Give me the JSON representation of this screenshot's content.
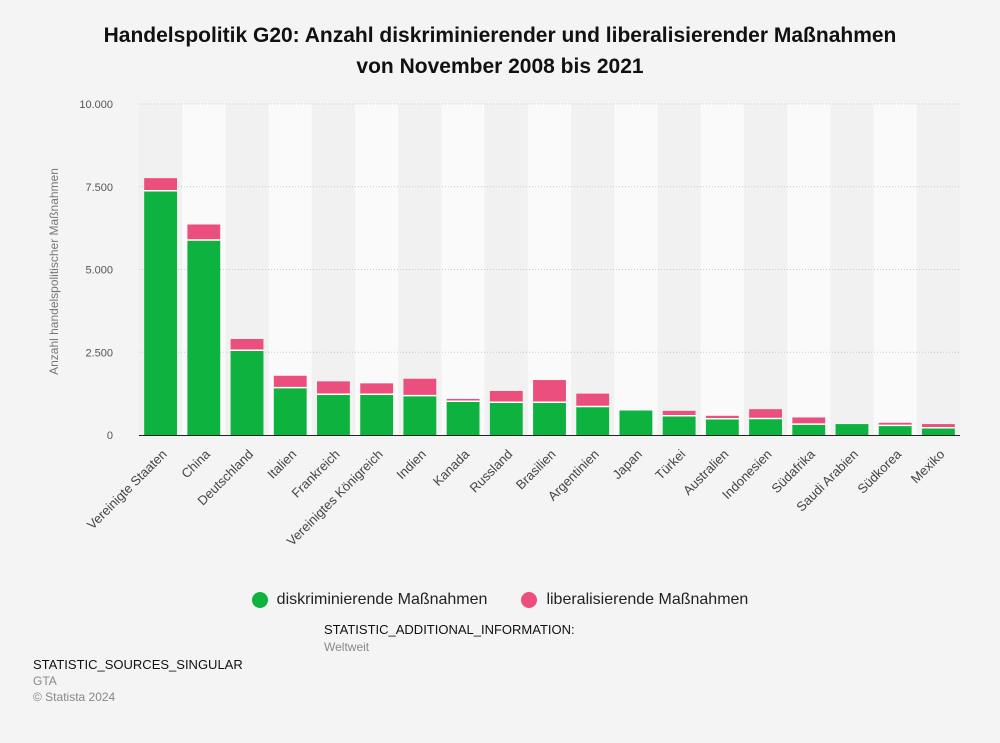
{
  "title_line1": "Handelspolitik G20: Anzahl diskriminierender und liberalisierender Maßnahmen",
  "title_line2": "von November 2008 bis 2021",
  "additional_info": {
    "label": "STATISTIC_ADDITIONAL_INFORMATION:",
    "value": "Weltweit"
  },
  "sources": {
    "label": "STATISTIC_SOURCES_SINGULAR",
    "source": "GTA",
    "copyright": "© Statista 2024"
  },
  "colors": {
    "diskriminierend": "#0db33e",
    "liberalisierend": "#ea4f7e"
  },
  "chart_data": {
    "type": "bar",
    "stacked": true,
    "title": "Handelspolitik G20: Anzahl diskriminierender und liberalisierender Maßnahmen von November 2008 bis 2021",
    "ylabel": "Anzahl handelspolitischer Maßnahmen",
    "xlabel": "",
    "ylim": [
      0,
      10000
    ],
    "yticks": [
      0,
      2500,
      5000,
      7500,
      10000
    ],
    "ytick_labels": [
      "0",
      "2.500",
      "5.000",
      "7.500",
      "10.000"
    ],
    "grid": true,
    "legend_position": "bottom",
    "categories": [
      "Vereinigte Staaten",
      "China",
      "Deutschland",
      "Italien",
      "Frankreich",
      "Vereinigtes Königreich",
      "Indien",
      "Kanada",
      "Russland",
      "Brasilien",
      "Argentinien",
      "Japan",
      "Türkei",
      "Australien",
      "Indonesien",
      "Südafrika",
      "Saudi Arabien",
      "Südkorea",
      "Mexiko"
    ],
    "series": [
      {
        "name": "diskriminierende Maßnahmen",
        "values": [
          7380,
          5890,
          2560,
          1430,
          1230,
          1230,
          1190,
          1020,
          990,
          990,
          860,
          740,
          580,
          490,
          500,
          330,
          330,
          290,
          220
        ]
      },
      {
        "name": "liberalisierende Maßnahmen",
        "values": [
          380,
          470,
          340,
          360,
          390,
          330,
          510,
          70,
          340,
          670,
          390,
          0,
          150,
          90,
          280,
          200,
          0,
          80,
          110
        ]
      }
    ]
  }
}
